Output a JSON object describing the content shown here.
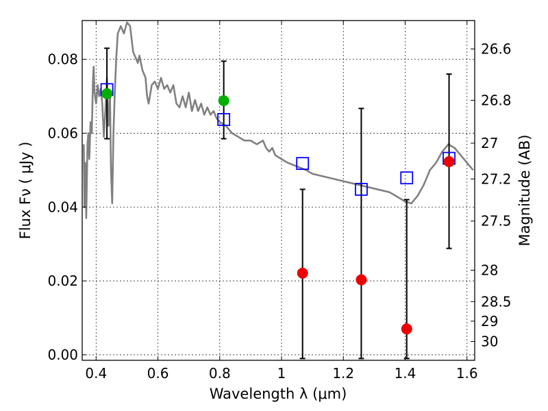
{
  "chart_data": {
    "type": "scatter",
    "xlabel": "Wavelength  λ (μm)",
    "ylabel": "Flux  Fν  ( μJy )",
    "y2label": "Magnitude (AB)",
    "xlim": [
      0.355,
      1.625
    ],
    "ylim": [
      -0.0015,
      0.0905
    ],
    "grid": true,
    "x_ticks": [
      0.4,
      0.6,
      0.8,
      1.0,
      1.2,
      1.4,
      1.6
    ],
    "x_tick_labels": [
      "0.4",
      "0.6",
      "0.8",
      "1",
      "1.2",
      "1.4",
      "1.6"
    ],
    "y_ticks": [
      0.0,
      0.02,
      0.04,
      0.06,
      0.08
    ],
    "y_tick_labels": [
      "0.00",
      "0.02",
      "0.04",
      "0.06",
      "0.08"
    ],
    "y2_ticks": [
      {
        "label": "26.6",
        "flux": 0.0828
      },
      {
        "label": "26.8",
        "flux": 0.0689
      },
      {
        "label": "27",
        "flux": 0.0573
      },
      {
        "label": "27.2",
        "flux": 0.0476
      },
      {
        "label": "27.5",
        "flux": 0.0362
      },
      {
        "label": "28",
        "flux": 0.0229
      },
      {
        "label": "28.5",
        "flux": 0.0144
      },
      {
        "label": "29",
        "flux": 0.0091
      },
      {
        "label": "30",
        "flux": 0.0036
      }
    ],
    "series": [
      {
        "kind": "line",
        "color": "#808080",
        "x": [
          0.36,
          0.362,
          0.365,
          0.368,
          0.372,
          0.375,
          0.378,
          0.382,
          0.386,
          0.39,
          0.392,
          0.395,
          0.4,
          0.405,
          0.41,
          0.415,
          0.42,
          0.425,
          0.43,
          0.435,
          0.44,
          0.445,
          0.448,
          0.452,
          0.456,
          0.46,
          0.465,
          0.47,
          0.48,
          0.49,
          0.5,
          0.51,
          0.52,
          0.53,
          0.535,
          0.54,
          0.55,
          0.56,
          0.565,
          0.57,
          0.58,
          0.59,
          0.6,
          0.61,
          0.62,
          0.63,
          0.64,
          0.65,
          0.66,
          0.67,
          0.68,
          0.69,
          0.7,
          0.71,
          0.72,
          0.73,
          0.74,
          0.75,
          0.76,
          0.77,
          0.78,
          0.79,
          0.8,
          0.82,
          0.84,
          0.86,
          0.88,
          0.9,
          0.92,
          0.94,
          0.95,
          0.96,
          0.97,
          0.98,
          1.0,
          1.02,
          1.05,
          1.08,
          1.1,
          1.15,
          1.2,
          1.25,
          1.3,
          1.35,
          1.38,
          1.4,
          1.42,
          1.44,
          1.46,
          1.48,
          1.5,
          1.52,
          1.54,
          1.56,
          1.58,
          1.6,
          1.62
        ],
        "y": [
          0.057,
          0.04,
          0.052,
          0.037,
          0.057,
          0.06,
          0.053,
          0.063,
          0.06,
          0.075,
          0.078,
          0.071,
          0.068,
          0.073,
          0.07,
          0.072,
          0.068,
          0.059,
          0.066,
          0.075,
          0.062,
          0.07,
          0.05,
          0.041,
          0.06,
          0.07,
          0.08,
          0.087,
          0.089,
          0.087,
          0.09,
          0.089,
          0.082,
          0.08,
          0.079,
          0.081,
          0.077,
          0.075,
          0.07,
          0.068,
          0.073,
          0.074,
          0.072,
          0.075,
          0.072,
          0.073,
          0.071,
          0.073,
          0.068,
          0.067,
          0.07,
          0.067,
          0.071,
          0.066,
          0.069,
          0.066,
          0.068,
          0.065,
          0.067,
          0.065,
          0.066,
          0.064,
          0.063,
          0.062,
          0.06,
          0.059,
          0.058,
          0.058,
          0.057,
          0.058,
          0.056,
          0.055,
          0.056,
          0.054,
          0.053,
          0.052,
          0.051,
          0.05,
          0.049,
          0.048,
          0.047,
          0.046,
          0.045,
          0.044,
          0.0425,
          0.0415,
          0.041,
          0.043,
          0.046,
          0.05,
          0.052,
          0.055,
          0.057,
          0.056,
          0.054,
          0.052,
          0.05
        ]
      },
      {
        "kind": "markers",
        "marker": "square",
        "color": "#0000ff",
        "x": [
          0.435,
          0.813,
          1.068,
          1.258,
          1.405,
          1.542
        ],
        "y": [
          0.0718,
          0.0637,
          0.0518,
          0.0448,
          0.0479,
          0.0532
        ]
      },
      {
        "kind": "markers",
        "marker": "circle",
        "color": "#00b000",
        "x": [
          0.435,
          0.813
        ],
        "y": [
          0.0707,
          0.0688
        ],
        "yerr": [
          [
            0.0585,
            0.083
          ],
          [
            0.0585,
            0.0795
          ]
        ]
      },
      {
        "kind": "markers",
        "marker": "circle",
        "color": "#ee0000",
        "x": [
          1.068,
          1.258,
          1.405,
          1.542
        ],
        "y": [
          0.0221,
          0.0203,
          0.007,
          0.0523
        ],
        "yerr": [
          [
            -0.001,
            0.0448
          ],
          [
            -0.001,
            0.0667
          ],
          [
            -0.001,
            0.042
          ],
          [
            0.0288,
            0.076
          ]
        ]
      }
    ]
  }
}
